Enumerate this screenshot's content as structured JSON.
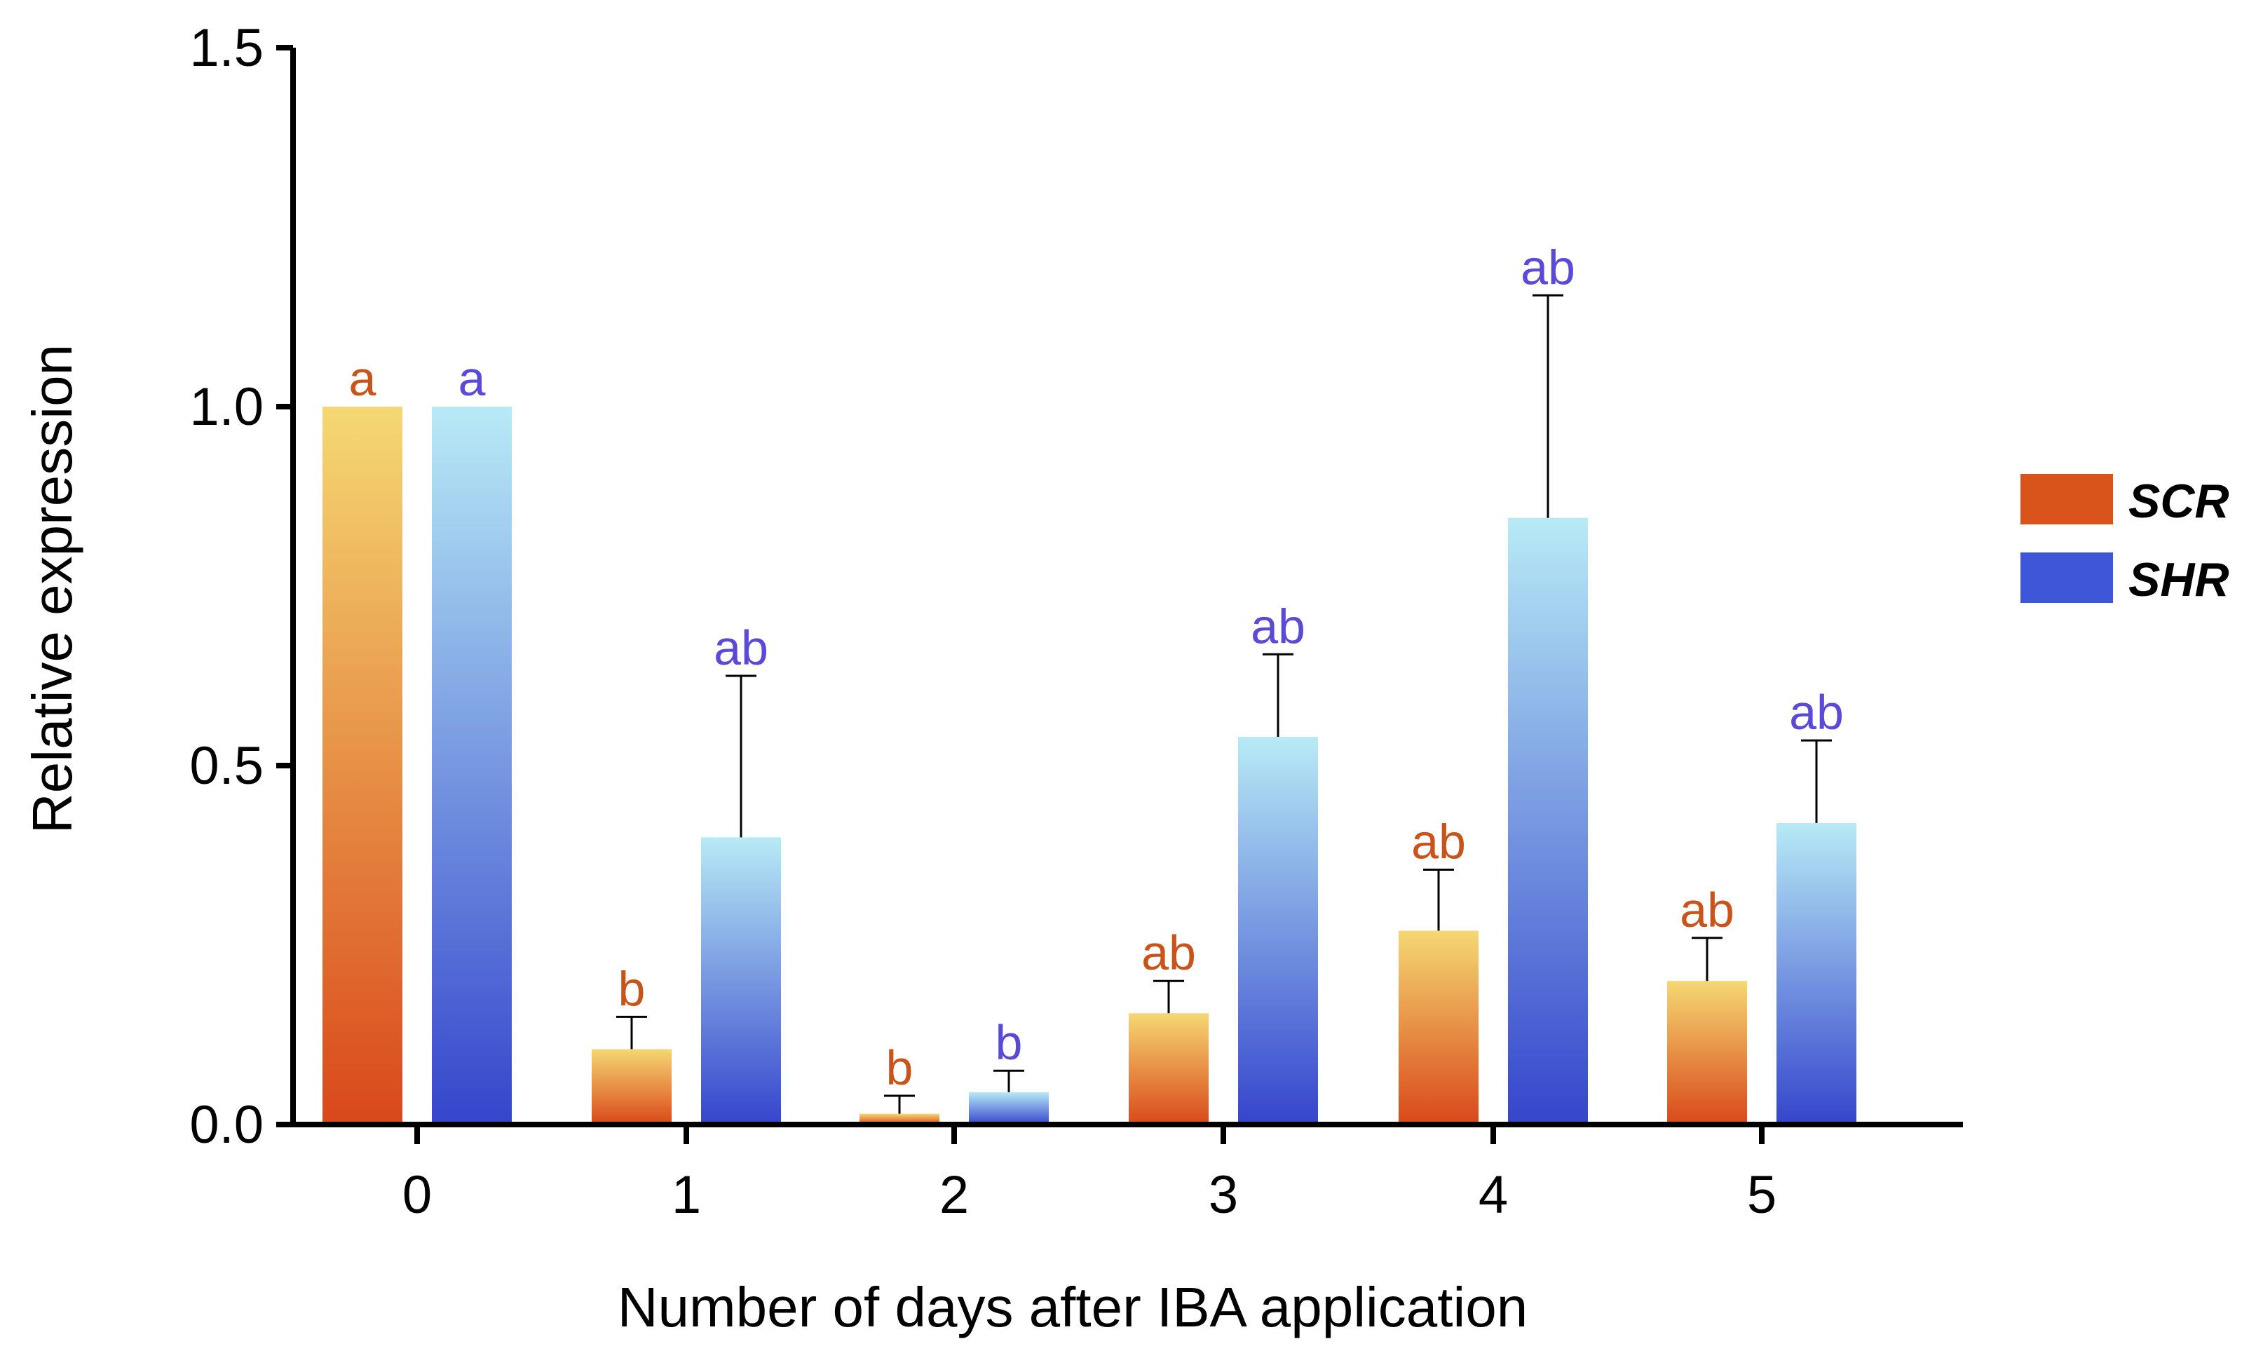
{
  "chart_data": {
    "type": "bar",
    "title": "",
    "xlabel": "Number of days after IBA application",
    "ylabel": "Relative expression",
    "categories": [
      "0",
      "1",
      "2",
      "3",
      "4",
      "5"
    ],
    "ylim": [
      0,
      1.5
    ],
    "yticks": [
      "0.0",
      "0.5",
      "1.0",
      "1.5"
    ],
    "ytick_values": [
      0,
      0.5,
      1.0,
      1.5
    ],
    "grid": false,
    "legend_position": "right",
    "series": [
      {
        "name": "SCR",
        "legend_color": "#d9541a",
        "gradient_top": "#f5d873",
        "gradient_bottom": "#d9481a",
        "label_color": "#c8541b",
        "values": [
          1.0,
          0.105,
          0.015,
          0.155,
          0.27,
          0.2
        ],
        "error_upper": [
          1.0,
          0.15,
          0.04,
          0.2,
          0.355,
          0.26
        ],
        "significance": [
          "a",
          "b",
          "b",
          "ab",
          "ab",
          "ab"
        ]
      },
      {
        "name": "SHR",
        "legend_color": "#3e56d8",
        "gradient_top": "#b8eaf6",
        "gradient_bottom": "#3545cc",
        "label_color": "#5a4ad8",
        "values": [
          1.0,
          0.4,
          0.045,
          0.54,
          0.845,
          0.42
        ],
        "error_upper": [
          1.0,
          0.625,
          0.075,
          0.655,
          1.155,
          0.535
        ],
        "significance": [
          "a",
          "ab",
          "b",
          "ab",
          "ab",
          "ab"
        ]
      }
    ]
  }
}
